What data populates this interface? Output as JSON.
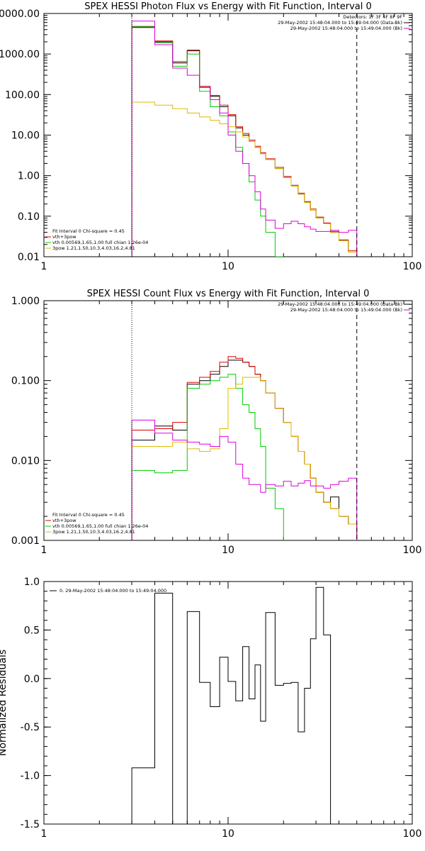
{
  "chart_data": [
    {
      "type": "line",
      "step": true,
      "title": "SPEX HESSI Photon Flux vs Energy with Fit Function, Interval 0",
      "xlabel": "",
      "ylabel": "",
      "xscale": "log",
      "yscale": "log",
      "xlim": [
        1,
        100
      ],
      "ylim": [
        0.01,
        10000
      ],
      "xticks": [
        1,
        10,
        100
      ],
      "xtick_labels": [
        "1",
        "10",
        "100"
      ],
      "yticks": [
        0.01,
        0.1,
        1,
        10,
        100,
        1000,
        10000
      ],
      "ytick_labels": [
        "0.01",
        "0.10",
        "1.00",
        "10.00",
        "100.00",
        "1000.00",
        "10000.00"
      ],
      "vlines": [
        {
          "x": 3.0,
          "style": "dotted"
        },
        {
          "x": 50,
          "style": "dashed"
        }
      ],
      "legend_top": [
        {
          "text": "Detectors: 1F 3F 4F 8F 9F",
          "color": ""
        },
        {
          "text": "29-May-2002 15:48:04.000 to 15:49:04.000 (Data-Bk)",
          "color": "#000000"
        },
        {
          "text": "29-May-2002 15:48:04.000 to 15:49:04.000 (Bk)",
          "color": "#dd00dd"
        }
      ],
      "legend_bottom": [
        {
          "text": "Fit Interval 0   Chi-square = 0.45",
          "color": ""
        },
        {
          "text": "vth+3pow",
          "color": "#dd0000"
        },
        {
          "text": "vth 0.00569,1.65,1.00  full chian 1.26e-04",
          "color": "#00cc00"
        },
        {
          "text": "3pow 1.21,1.50,10.3,4.03,16.2,4.81",
          "color": "#ddbb00"
        }
      ],
      "edges": [
        3.0,
        4.0,
        5.0,
        6.0,
        7.0,
        8.0,
        9.0,
        10.0,
        11.0,
        12.0,
        13.0,
        14.0,
        15.0,
        16.0,
        18.0,
        20.0,
        22.0,
        24.0,
        26.0,
        28.0,
        30.0,
        33.0,
        36.0,
        40.0,
        45.0,
        50.0
      ],
      "series": [
        {
          "name": "Data-Bk",
          "color": "#000000",
          "values": [
            4500,
            2000,
            600,
            1200,
            150,
            90,
            50,
            30,
            15,
            10,
            7,
            5,
            3.5,
            2.5,
            1.5,
            0.9,
            0.55,
            0.35,
            0.22,
            0.14,
            0.09,
            0.065,
            0.04,
            0.025,
            0.013
          ]
        },
        {
          "name": "vth+3pow",
          "color": "#dd0000",
          "values": [
            4800,
            2100,
            650,
            1250,
            160,
            95,
            55,
            32,
            16,
            11,
            7.5,
            5.3,
            3.7,
            2.6,
            1.6,
            0.95,
            0.58,
            0.37,
            0.23,
            0.15,
            0.095,
            0.068,
            0.042,
            0.026,
            0.014
          ]
        },
        {
          "name": "vth",
          "color": "#00cc00",
          "values": [
            4700,
            1900,
            500,
            1000,
            120,
            50,
            30,
            12,
            5,
            2,
            0.7,
            0.25,
            0.1,
            0.04,
            0.01
          ]
        },
        {
          "name": "3pow",
          "color": "#ddbb00",
          "values": [
            65,
            55,
            45,
            35,
            28,
            23,
            19,
            16,
            12,
            9,
            7,
            5,
            3.5,
            2.5,
            1.5,
            0.9,
            0.55,
            0.35,
            0.22,
            0.14,
            0.09,
            0.065,
            0.04,
            0.025,
            0.013
          ]
        },
        {
          "name": "Bk",
          "color": "#dd00dd",
          "values": [
            6500,
            1700,
            450,
            300,
            150,
            75,
            35,
            10,
            4,
            2,
            1,
            0.4,
            0.15,
            0.08,
            0.05,
            0.065,
            0.075,
            0.065,
            0.055,
            0.048,
            0.042,
            0.042,
            0.045,
            0.04,
            0.045
          ]
        }
      ]
    },
    {
      "type": "line",
      "step": true,
      "title": "SPEX HESSI Count Flux vs Energy with Fit Function, Interval 0",
      "xlabel": "",
      "ylabel": "",
      "xscale": "log",
      "yscale": "log",
      "xlim": [
        1,
        100
      ],
      "ylim": [
        0.001,
        1
      ],
      "xticks": [
        1,
        10,
        100
      ],
      "xtick_labels": [
        "1",
        "10",
        "100"
      ],
      "yticks": [
        0.001,
        0.01,
        0.1,
        1
      ],
      "ytick_labels": [
        "0.001",
        "0.010",
        "0.100",
        "1.000"
      ],
      "vlines": [
        {
          "x": 3.0,
          "style": "dotted"
        },
        {
          "x": 50,
          "style": "dashed"
        }
      ],
      "legend_top": [
        {
          "text": "29-May-2002 15:48:04.000 to 15:49:04.000 (Data-Bk)",
          "color": "#000000"
        },
        {
          "text": "29-May-2002 15:48:04.000 to 15:49:04.000 (Bk)",
          "color": "#dd00dd"
        }
      ],
      "legend_bottom": [
        {
          "text": "Fit Interval 0   Chi-square = 0.45",
          "color": ""
        },
        {
          "text": "vth+3pow",
          "color": "#dd0000"
        },
        {
          "text": "vth 0.00569,1.65,1.00  full chian 1.26e-04",
          "color": "#00cc00"
        },
        {
          "text": "3pow 1.21,1.50,10.3,4.03,16.2,4.81",
          "color": "#ddbb00"
        }
      ],
      "edges": [
        3.0,
        4.0,
        5.0,
        6.0,
        7.0,
        8.0,
        9.0,
        10.0,
        11.0,
        12.0,
        13.0,
        14.0,
        15.0,
        16.0,
        18.0,
        20.0,
        22.0,
        24.0,
        26.0,
        28.0,
        30.0,
        33.0,
        36.0,
        40.0,
        45.0,
        50.0
      ],
      "series": [
        {
          "name": "Data-Bk",
          "color": "#000000",
          "values": [
            0.018,
            0.027,
            0.024,
            0.09,
            0.1,
            0.12,
            0.15,
            0.18,
            0.18,
            0.17,
            0.15,
            0.12,
            0.1,
            0.07,
            0.045,
            0.03,
            0.02,
            0.013,
            0.009,
            0.006,
            0.004,
            0.003,
            0.0035,
            0.002,
            0.0016
          ]
        },
        {
          "name": "vth+3pow",
          "color": "#dd0000",
          "values": [
            0.024,
            0.025,
            0.03,
            0.095,
            0.11,
            0.13,
            0.17,
            0.2,
            0.19,
            0.17,
            0.15,
            0.12,
            0.1,
            0.07,
            0.045,
            0.03,
            0.02,
            0.013,
            0.009,
            0.006,
            0.004,
            0.003,
            0.0025,
            0.002,
            0.0016
          ]
        },
        {
          "name": "vth",
          "color": "#00cc00",
          "values": [
            0.0075,
            0.007,
            0.0075,
            0.08,
            0.09,
            0.1,
            0.11,
            0.12,
            0.08,
            0.05,
            0.04,
            0.025,
            0.015,
            0.0045,
            0.0025
          ]
        },
        {
          "name": "3pow",
          "color": "#ddbb00",
          "values": [
            0.015,
            0.015,
            0.017,
            0.014,
            0.013,
            0.014,
            0.025,
            0.08,
            0.09,
            0.11,
            0.11,
            0.11,
            0.1,
            0.07,
            0.045,
            0.03,
            0.02,
            0.013,
            0.009,
            0.006,
            0.004,
            0.003,
            0.0025,
            0.002,
            0.0016
          ]
        },
        {
          "name": "Bk",
          "color": "#dd00dd",
          "values": [
            0.032,
            0.022,
            0.018,
            0.017,
            0.016,
            0.015,
            0.02,
            0.017,
            0.009,
            0.006,
            0.005,
            0.005,
            0.004,
            0.005,
            0.0048,
            0.0055,
            0.0048,
            0.0052,
            0.0056,
            0.0048,
            0.0048,
            0.0045,
            0.005,
            0.0055,
            0.006
          ]
        }
      ]
    },
    {
      "type": "line",
      "step": true,
      "title": "",
      "xlabel": "",
      "ylabel": "Normalized Residuals",
      "xscale": "log",
      "yscale": "linear",
      "xlim": [
        1,
        100
      ],
      "ylim": [
        -1.5,
        1.0
      ],
      "xticks": [
        1,
        10,
        100
      ],
      "xtick_labels": [
        "1",
        "10",
        "100"
      ],
      "yticks": [
        -1.5,
        -1.0,
        -0.5,
        0.0,
        0.5,
        1.0
      ],
      "ytick_labels": [
        "-1.5",
        "-1.0",
        "-0.5",
        "0.0",
        "0.5",
        "1.0"
      ],
      "vlines": [],
      "legend_top": [
        {
          "text": "0. 29-May-2002 15:48:04.000 to 15:49:04.000",
          "color": "#000000"
        }
      ],
      "legend_bottom": [],
      "edges": [
        3.0,
        4.0,
        5.0,
        6.0,
        7.0,
        8.0,
        9.0,
        10.0,
        11.0,
        12.0,
        13.0,
        14.0,
        15.0,
        16.0,
        18.0,
        20.0,
        22.0,
        24.0,
        26.0,
        28.0,
        30.0,
        33.0,
        36.0,
        40.0,
        45.0,
        50.0
      ],
      "series": [
        {
          "name": "0. 29-May-2002 15:48:04.000 to 15:49:04.000",
          "color": "#000000",
          "values": [
            -0.92,
            0.88,
            -1.5,
            0.69,
            -0.04,
            -0.29,
            0.22,
            -0.03,
            -0.23,
            0.33,
            -0.21,
            0.14,
            -0.44,
            0.68,
            -0.07,
            -0.05,
            -0.04,
            -0.55,
            -0.1,
            0.41,
            0.94,
            0.45
          ]
        }
      ]
    }
  ]
}
